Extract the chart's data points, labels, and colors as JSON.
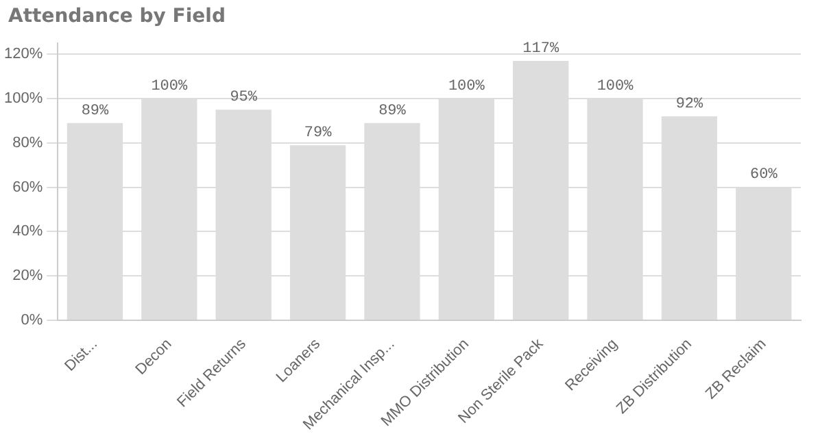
{
  "chart_data": {
    "type": "bar",
    "title": "Attendance by Field",
    "categories": [
      "Dist...",
      "Decon",
      "Field Returns",
      "Loaners",
      "Mechanical Insp...",
      "MMO Distribution",
      "Non Sterile Pack",
      "Receiving",
      "ZB Distribution",
      "ZB Reclaim"
    ],
    "values": [
      89,
      100,
      95,
      79,
      89,
      100,
      117,
      100,
      92,
      60
    ],
    "value_labels": [
      "89%",
      "100%",
      "95%",
      "79%",
      "89%",
      "100%",
      "117%",
      "100%",
      "92%",
      "60%"
    ],
    "color": "#dddddd",
    "ylim": [
      0,
      125
    ],
    "yticks": [
      {
        "value": 0,
        "label": "0%"
      },
      {
        "value": 20,
        "label": "20%"
      },
      {
        "value": 40,
        "label": "40%"
      },
      {
        "value": 60,
        "label": "60%"
      },
      {
        "value": 80,
        "label": "80%"
      },
      {
        "value": 100,
        "label": "100%"
      },
      {
        "value": 120,
        "label": "120%"
      }
    ],
    "grid": "y"
  }
}
